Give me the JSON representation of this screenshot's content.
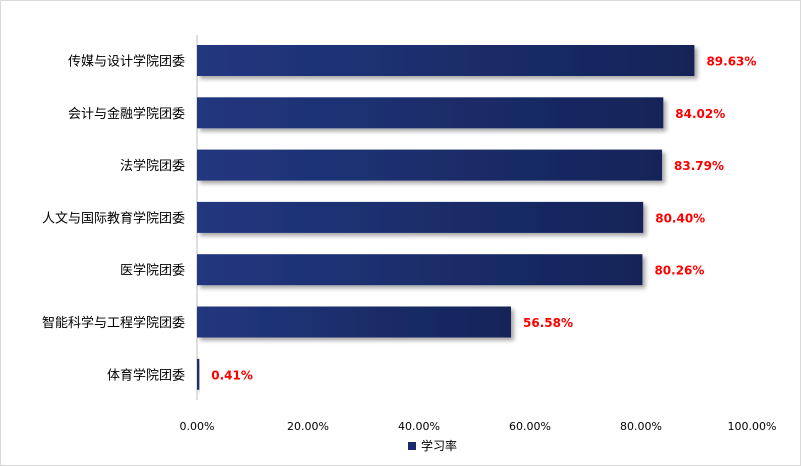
{
  "colors": {
    "bar": "#1a2a6c",
    "bar_dark": "#0f1a45",
    "value_label": "#ff0000",
    "axis": "#bfbfbf"
  },
  "chart_data": {
    "type": "bar",
    "orientation": "horizontal",
    "categories": [
      "传媒与设计学院团委",
      "会计与金融学院团委",
      "法学院团委",
      "人文与国际教育学院团委",
      "医学院团委",
      "智能科学与工程学院团委",
      "体育学院团委"
    ],
    "series": [
      {
        "name": "学习率",
        "values": [
          89.63,
          84.02,
          83.79,
          80.4,
          80.26,
          56.58,
          0.41
        ]
      }
    ],
    "value_labels": [
      "89.63%",
      "84.02%",
      "83.79%",
      "80.40%",
      "80.26%",
      "56.58%",
      "0.41%"
    ],
    "xlim": [
      0,
      100
    ],
    "x_ticks": [
      0,
      20,
      40,
      60,
      80,
      100
    ],
    "x_tick_labels": [
      "0.00%",
      "20.00%",
      "40.00%",
      "60.00%",
      "80.00%",
      "100.00%"
    ],
    "grid": false,
    "legend_position": "bottom"
  }
}
